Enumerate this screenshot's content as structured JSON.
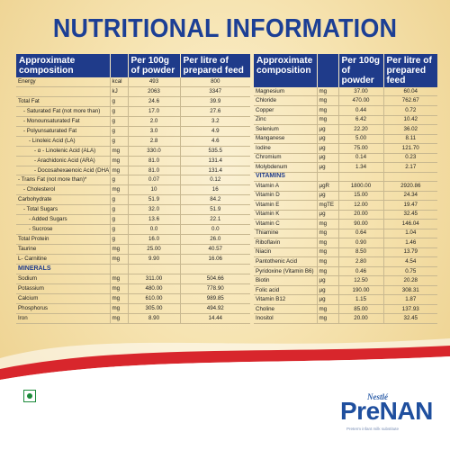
{
  "title": "NUTRITIONAL INFORMATION",
  "headers": {
    "composition": "Approximate composition",
    "per100g": "Per 100g of powder",
    "perLitre": "Per litre of prepared feed"
  },
  "left_rows": [
    {
      "name": "Energy",
      "unit": "kcal",
      "g": "493",
      "l": "800",
      "indent": 0
    },
    {
      "name": "",
      "unit": "kJ",
      "g": "2063",
      "l": "3347",
      "indent": 0
    },
    {
      "name": "Total Fat",
      "unit": "g",
      "g": "24.6",
      "l": "39.9",
      "indent": 0
    },
    {
      "name": "- Saturated Fat (not more than)",
      "unit": "g",
      "g": "17.0",
      "l": "27.6",
      "indent": 1
    },
    {
      "name": "- Monounsaturated Fat",
      "unit": "g",
      "g": "2.0",
      "l": "3.2",
      "indent": 1
    },
    {
      "name": "- Polyunsaturated Fat",
      "unit": "g",
      "g": "3.0",
      "l": "4.9",
      "indent": 1
    },
    {
      "name": "- Linoleic Acid (LA)",
      "unit": "g",
      "g": "2.8",
      "l": "4.6",
      "indent": 2
    },
    {
      "name": "- α - Linolenic Acid (ALA)",
      "unit": "mg",
      "g": "330.0",
      "l": "535.5",
      "indent": 3
    },
    {
      "name": "- Arachidonic Acid (ARA)",
      "unit": "mg",
      "g": "81.0",
      "l": "131.4",
      "indent": 3
    },
    {
      "name": "- Docosahexaenoic Acid (DHA)",
      "unit": "mg",
      "g": "81.0",
      "l": "131.4",
      "indent": 3
    },
    {
      "name": "- Trans Fat (not more than)*",
      "unit": "g",
      "g": "0.07",
      "l": "0.12",
      "indent": 0
    },
    {
      "name": "- Cholesterol",
      "unit": "mg",
      "g": "10",
      "l": "16",
      "indent": 1
    },
    {
      "name": "Carbohydrate",
      "unit": "g",
      "g": "51.9",
      "l": "84.2",
      "indent": 0
    },
    {
      "name": "- Total Sugars",
      "unit": "g",
      "g": "32.0",
      "l": "51.9",
      "indent": 1
    },
    {
      "name": "- Added Sugars",
      "unit": "g",
      "g": "13.6",
      "l": "22.1",
      "indent": 2
    },
    {
      "name": "- Sucrose",
      "unit": "g",
      "g": "0.0",
      "l": "0.0",
      "indent": 2
    },
    {
      "name": "Total Protein",
      "unit": "g",
      "g": "16.0",
      "l": "26.0",
      "indent": 0
    },
    {
      "name": "Taurine",
      "unit": "mg",
      "g": "25.00",
      "l": "40.57",
      "indent": 0
    },
    {
      "name": "L- Carnitine",
      "unit": "mg",
      "g": "9.90",
      "l": "16.06",
      "indent": 0
    },
    {
      "name": "MINERALS",
      "unit": "",
      "g": "",
      "l": "",
      "section": true
    },
    {
      "name": "Sodium",
      "unit": "mg",
      "g": "311.00",
      "l": "504.66",
      "indent": 0
    },
    {
      "name": "Potassium",
      "unit": "mg",
      "g": "480.00",
      "l": "778.90",
      "indent": 0
    },
    {
      "name": "Calcium",
      "unit": "mg",
      "g": "610.00",
      "l": "989.85",
      "indent": 0
    },
    {
      "name": "Phosphorus",
      "unit": "mg",
      "g": "305.00",
      "l": "494.92",
      "indent": 0
    },
    {
      "name": "Iron",
      "unit": "mg",
      "g": "8.90",
      "l": "14.44",
      "indent": 0
    }
  ],
  "right_rows": [
    {
      "name": "Magnesium",
      "unit": "mg",
      "g": "37.00",
      "l": "60.04"
    },
    {
      "name": "Chloride",
      "unit": "mg",
      "g": "470.00",
      "l": "762.67"
    },
    {
      "name": "Copper",
      "unit": "mg",
      "g": "0.44",
      "l": "0.72"
    },
    {
      "name": "Zinc",
      "unit": "mg",
      "g": "6.42",
      "l": "10.42"
    },
    {
      "name": "Selenium",
      "unit": "µg",
      "g": "22.20",
      "l": "36.02"
    },
    {
      "name": "Manganese",
      "unit": "µg",
      "g": "5.00",
      "l": "8.11"
    },
    {
      "name": "Iodine",
      "unit": "µg",
      "g": "75.00",
      "l": "121.70"
    },
    {
      "name": "Chromium",
      "unit": "µg",
      "g": "0.14",
      "l": "0.23"
    },
    {
      "name": "Molybdenum",
      "unit": "µg",
      "g": "1.34",
      "l": "2.17"
    },
    {
      "name": "VITAMINS",
      "unit": "",
      "g": "",
      "l": "",
      "section": true
    },
    {
      "name": "Vitamin A",
      "unit": "µgR",
      "g": "1800.00",
      "l": "2920.86"
    },
    {
      "name": "Vitamin D",
      "unit": "µg",
      "g": "15.00",
      "l": "24.34"
    },
    {
      "name": "Vitamin E",
      "unit": "mgTE",
      "g": "12.00",
      "l": "19.47"
    },
    {
      "name": "Vitamin K",
      "unit": "µg",
      "g": "20.00",
      "l": "32.45"
    },
    {
      "name": "Vitamin C",
      "unit": "mg",
      "g": "90.00",
      "l": "146.04"
    },
    {
      "name": "Thiamine",
      "unit": "mg",
      "g": "0.64",
      "l": "1.04"
    },
    {
      "name": "Riboflavin",
      "unit": "mg",
      "g": "0.90",
      "l": "1.46"
    },
    {
      "name": "Niacin",
      "unit": "mg",
      "g": "8.50",
      "l": "13.79"
    },
    {
      "name": "Pantothenic Acid",
      "unit": "mg",
      "g": "2.80",
      "l": "4.54"
    },
    {
      "name": "Pyridoxine (Vitamin B6)",
      "unit": "mg",
      "g": "0.46",
      "l": "0.75"
    },
    {
      "name": "Biotin",
      "unit": "µg",
      "g": "12.50",
      "l": "20.28"
    },
    {
      "name": "Folic acid",
      "unit": "µg",
      "g": "190.00",
      "l": "308.31"
    },
    {
      "name": "Vitamin B12",
      "unit": "µg",
      "g": "1.15",
      "l": "1.87"
    },
    {
      "name": "Choline",
      "unit": "mg",
      "g": "85.00",
      "l": "137.93"
    },
    {
      "name": "Inositol",
      "unit": "mg",
      "g": "20.00",
      "l": "32.45"
    }
  ],
  "brand": {
    "nestle": "Nestlé",
    "product": "PreNAN",
    "tagline": "Preterm infant milk substitute"
  },
  "colors": {
    "title_blue": "#1c3f95",
    "header_blue": "#1f3b8a",
    "wave_red": "#d8262c",
    "veg_green": "#1b8a3a"
  },
  "icons": {
    "veg_mark": "veg-symbol-icon"
  }
}
